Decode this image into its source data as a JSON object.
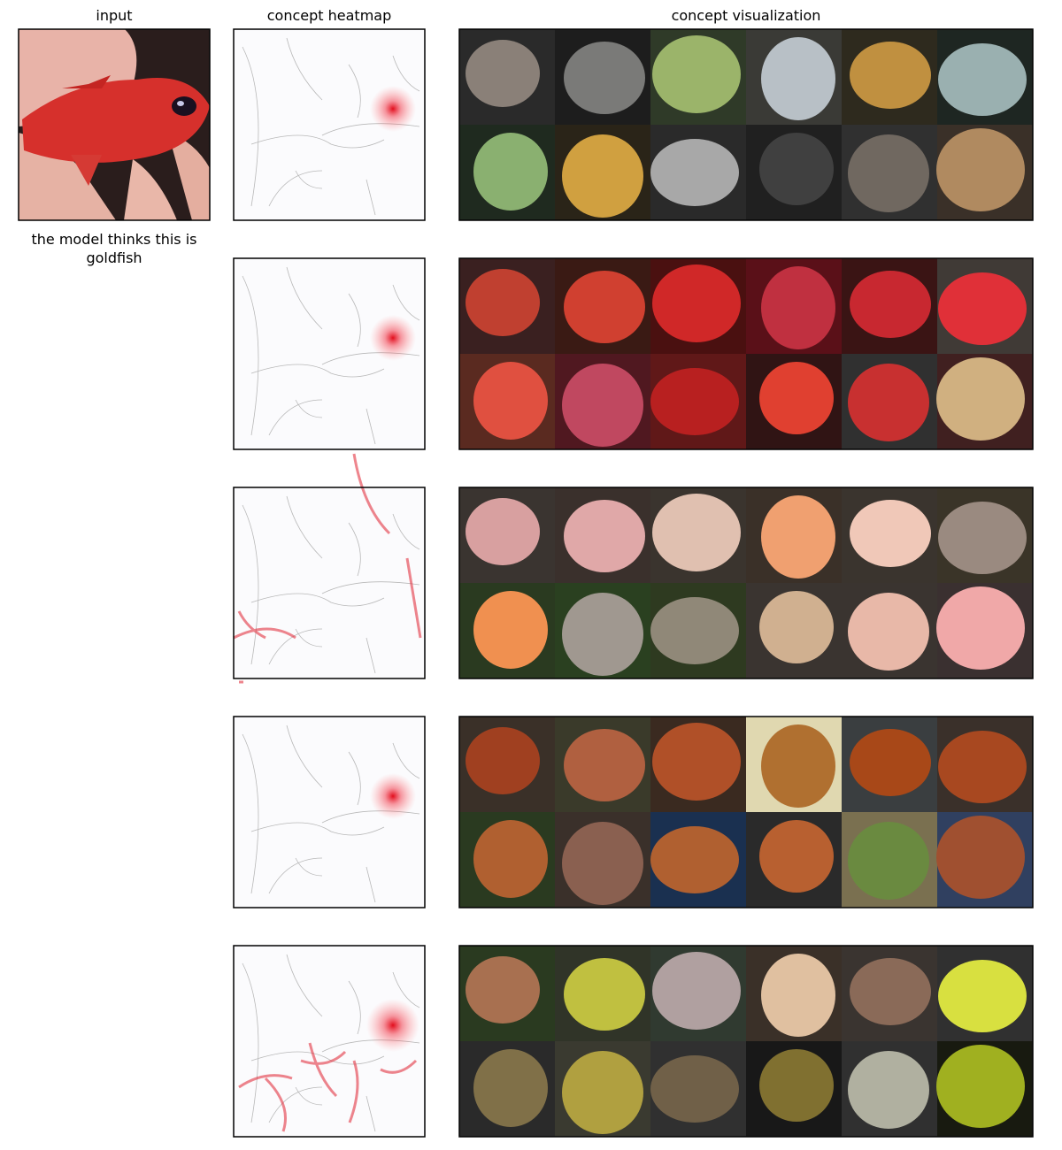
{
  "headers": [
    "input",
    "concept heatmap",
    "concept visualization"
  ],
  "caption": "the model thinks this is goldfish"
}
